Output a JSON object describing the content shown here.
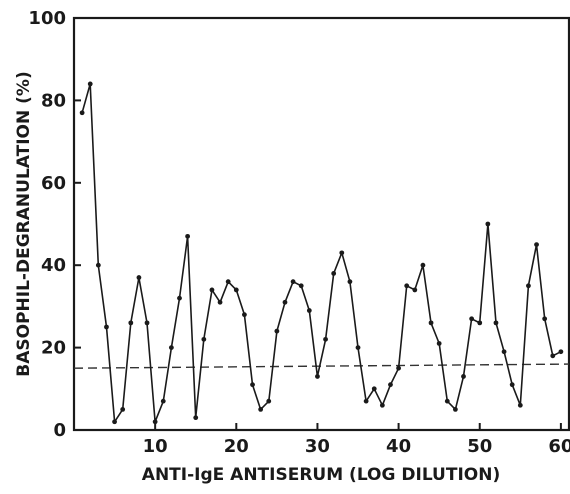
{
  "chart_data": {
    "type": "line",
    "title": "",
    "xlabel": "ANTI-IgE ANTISERUM (LOG DILUTION)",
    "ylabel": "BASOPHIL-DEGRANULATION (%)",
    "xlim": [
      0,
      61
    ],
    "ylim": [
      0,
      100
    ],
    "x_ticks": [
      10,
      20,
      30,
      40,
      50,
      60
    ],
    "y_ticks": [
      0,
      20,
      40,
      60,
      80,
      100
    ],
    "x_tick_labels": [
      "10",
      "20",
      "30",
      "40",
      "50",
      "60"
    ],
    "y_tick_labels": [
      "0",
      "20",
      "40",
      "60",
      "80",
      "100"
    ],
    "grid": false,
    "series": [
      {
        "style": "solid line with dot markers",
        "x": [
          1,
          2,
          3,
          4,
          5,
          6,
          7,
          8,
          9,
          10,
          11,
          12,
          13,
          14,
          15,
          16,
          17,
          18,
          19,
          20,
          21,
          22,
          23,
          24,
          25,
          26,
          27,
          28,
          29,
          30,
          31,
          32,
          33,
          34,
          35,
          36,
          37,
          38,
          39,
          40,
          41,
          42,
          43,
          44,
          45,
          46,
          47,
          48,
          49,
          50,
          51,
          52,
          53,
          54,
          55,
          56,
          57,
          58,
          59,
          60
        ],
        "y": [
          77,
          84,
          40,
          25,
          2,
          5,
          26,
          37,
          26,
          2,
          7,
          20,
          32,
          47,
          3,
          22,
          34,
          31,
          36,
          34,
          28,
          11,
          5,
          7,
          24,
          31,
          36,
          35,
          29,
          13,
          22,
          38,
          43,
          36,
          20,
          7,
          10,
          6,
          11,
          15,
          35,
          34,
          40,
          26,
          21,
          7,
          5,
          13,
          27,
          26,
          50,
          26,
          19,
          11,
          6,
          35,
          45,
          27,
          18,
          19
        ]
      },
      {
        "style": "dashed reference line",
        "x": [
          0,
          61
        ],
        "y": [
          15,
          16
        ]
      }
    ]
  }
}
